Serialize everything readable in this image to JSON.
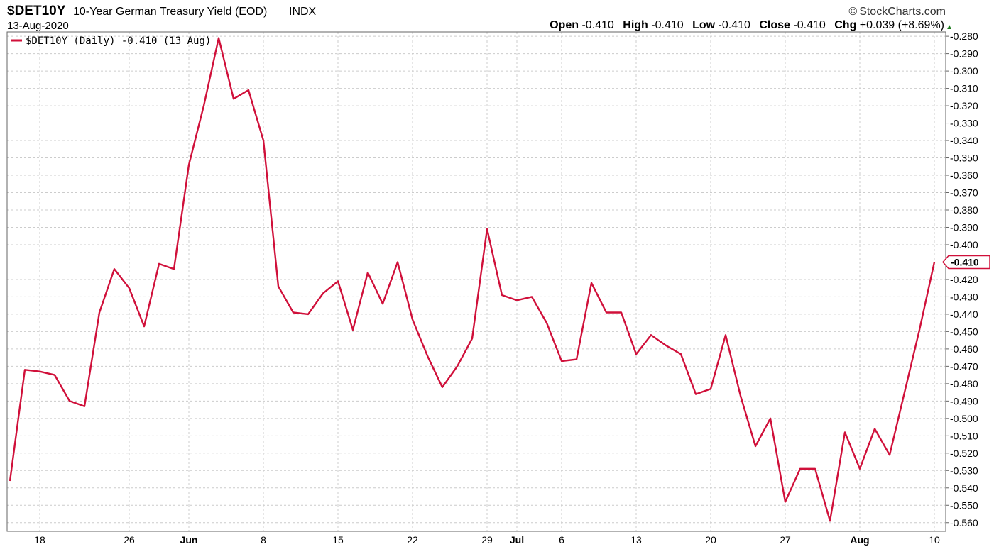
{
  "header": {
    "ticker": "$DET10Y",
    "description": "10-Year German Treasury Yield (EOD)",
    "exchange": "INDX",
    "date": "13-Aug-2020",
    "brand": "StockCharts.com",
    "ohlc": {
      "open_label": "Open",
      "open": "-0.410",
      "high_label": "High",
      "high": "-0.410",
      "low_label": "Low",
      "low": "-0.410",
      "close_label": "Close",
      "close": "-0.410",
      "chg_label": "Chg",
      "chg": "+0.039 (+8.69%)"
    }
  },
  "chart_data": {
    "type": "line",
    "legend": {
      "text": "$DET10Y (Daily) -0.410 (13 Aug)",
      "position": "top-left"
    },
    "last_value_label": "-0.410",
    "line_color": "#d0103a",
    "grid": true,
    "ylim": [
      -0.565,
      -0.2775
    ],
    "y_ticks": [
      -0.28,
      -0.29,
      -0.3,
      -0.31,
      -0.32,
      -0.33,
      -0.34,
      -0.35,
      -0.36,
      -0.37,
      -0.38,
      -0.39,
      -0.4,
      -0.41,
      -0.42,
      -0.43,
      -0.44,
      -0.45,
      -0.46,
      -0.47,
      -0.48,
      -0.49,
      -0.5,
      -0.51,
      -0.52,
      -0.53,
      -0.54,
      -0.55,
      -0.56
    ],
    "x_ticks": [
      {
        "label": "18",
        "date": "2020-05-18",
        "bold": false
      },
      {
        "label": "26",
        "date": "2020-05-26",
        "bold": false
      },
      {
        "label": "Jun",
        "date": "2020-06-01",
        "bold": true
      },
      {
        "label": "8",
        "date": "2020-06-08",
        "bold": false
      },
      {
        "label": "15",
        "date": "2020-06-15",
        "bold": false
      },
      {
        "label": "22",
        "date": "2020-06-22",
        "bold": false
      },
      {
        "label": "29",
        "date": "2020-06-29",
        "bold": false
      },
      {
        "label": "Jul",
        "date": "2020-07-01",
        "bold": true
      },
      {
        "label": "6",
        "date": "2020-07-06",
        "bold": false
      },
      {
        "label": "13",
        "date": "2020-07-13",
        "bold": false
      },
      {
        "label": "20",
        "date": "2020-07-20",
        "bold": false
      },
      {
        "label": "27",
        "date": "2020-07-27",
        "bold": false
      },
      {
        "label": "Aug",
        "date": "2020-08-03",
        "bold": true
      },
      {
        "label": "10",
        "date": "2020-08-10",
        "bold": false
      }
    ],
    "points": [
      {
        "date": "2020-05-14",
        "value": -0.536
      },
      {
        "date": "2020-05-15",
        "value": -0.472
      },
      {
        "date": "2020-05-18",
        "value": -0.473
      },
      {
        "date": "2020-05-19",
        "value": -0.475
      },
      {
        "date": "2020-05-20",
        "value": -0.49
      },
      {
        "date": "2020-05-21",
        "value": -0.493
      },
      {
        "date": "2020-05-22",
        "value": -0.439
      },
      {
        "date": "2020-05-25",
        "value": -0.414
      },
      {
        "date": "2020-05-26",
        "value": -0.425
      },
      {
        "date": "2020-05-27",
        "value": -0.447
      },
      {
        "date": "2020-05-28",
        "value": -0.411
      },
      {
        "date": "2020-05-29",
        "value": -0.414
      },
      {
        "date": "2020-06-01",
        "value": -0.354
      },
      {
        "date": "2020-06-02",
        "value": -0.32
      },
      {
        "date": "2020-06-03",
        "value": -0.281
      },
      {
        "date": "2020-06-04",
        "value": -0.316
      },
      {
        "date": "2020-06-05",
        "value": -0.311
      },
      {
        "date": "2020-06-08",
        "value": -0.34
      },
      {
        "date": "2020-06-09",
        "value": -0.424
      },
      {
        "date": "2020-06-10",
        "value": -0.439
      },
      {
        "date": "2020-06-11",
        "value": -0.44
      },
      {
        "date": "2020-06-12",
        "value": -0.428
      },
      {
        "date": "2020-06-15",
        "value": -0.421
      },
      {
        "date": "2020-06-16",
        "value": -0.449
      },
      {
        "date": "2020-06-17",
        "value": -0.416
      },
      {
        "date": "2020-06-18",
        "value": -0.434
      },
      {
        "date": "2020-06-19",
        "value": -0.41
      },
      {
        "date": "2020-06-22",
        "value": -0.443
      },
      {
        "date": "2020-06-23",
        "value": -0.464
      },
      {
        "date": "2020-06-24",
        "value": -0.482
      },
      {
        "date": "2020-06-25",
        "value": -0.47
      },
      {
        "date": "2020-06-26",
        "value": -0.454
      },
      {
        "date": "2020-06-29",
        "value": -0.391
      },
      {
        "date": "2020-06-30",
        "value": -0.429
      },
      {
        "date": "2020-07-01",
        "value": -0.432
      },
      {
        "date": "2020-07-02",
        "value": -0.43
      },
      {
        "date": "2020-07-03",
        "value": -0.445
      },
      {
        "date": "2020-07-06",
        "value": -0.467
      },
      {
        "date": "2020-07-07",
        "value": -0.466
      },
      {
        "date": "2020-07-08",
        "value": -0.422
      },
      {
        "date": "2020-07-09",
        "value": -0.439
      },
      {
        "date": "2020-07-10",
        "value": -0.439
      },
      {
        "date": "2020-07-13",
        "value": -0.463
      },
      {
        "date": "2020-07-14",
        "value": -0.452
      },
      {
        "date": "2020-07-15",
        "value": -0.458
      },
      {
        "date": "2020-07-16",
        "value": -0.463
      },
      {
        "date": "2020-07-17",
        "value": -0.486
      },
      {
        "date": "2020-07-20",
        "value": -0.483
      },
      {
        "date": "2020-07-21",
        "value": -0.452
      },
      {
        "date": "2020-07-22",
        "value": -0.487
      },
      {
        "date": "2020-07-23",
        "value": -0.516
      },
      {
        "date": "2020-07-24",
        "value": -0.5
      },
      {
        "date": "2020-07-27",
        "value": -0.548
      },
      {
        "date": "2020-07-28",
        "value": -0.529
      },
      {
        "date": "2020-07-29",
        "value": -0.529
      },
      {
        "date": "2020-07-30",
        "value": -0.559
      },
      {
        "date": "2020-07-31",
        "value": -0.508
      },
      {
        "date": "2020-08-03",
        "value": -0.529
      },
      {
        "date": "2020-08-04",
        "value": -0.506
      },
      {
        "date": "2020-08-05",
        "value": -0.521
      },
      {
        "date": "2020-08-06",
        "value": -0.485
      },
      {
        "date": "2020-08-07",
        "value": -0.449
      },
      {
        "date": "2020-08-10",
        "value": -0.41
      }
    ]
  }
}
